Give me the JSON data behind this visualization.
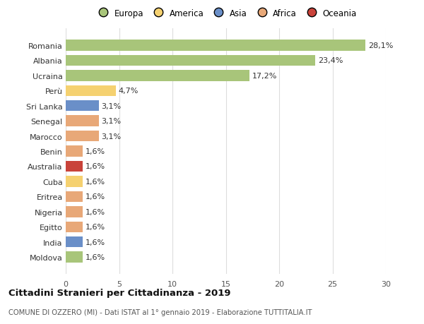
{
  "countries": [
    "Romania",
    "Albania",
    "Ucraina",
    "Perù",
    "Sri Lanka",
    "Senegal",
    "Marocco",
    "Benin",
    "Australia",
    "Cuba",
    "Eritrea",
    "Nigeria",
    "Egitto",
    "India",
    "Moldova"
  ],
  "values": [
    28.1,
    23.4,
    17.2,
    4.7,
    3.1,
    3.1,
    3.1,
    1.6,
    1.6,
    1.6,
    1.6,
    1.6,
    1.6,
    1.6,
    1.6
  ],
  "labels": [
    "28,1%",
    "23,4%",
    "17,2%",
    "4,7%",
    "3,1%",
    "3,1%",
    "3,1%",
    "1,6%",
    "1,6%",
    "1,6%",
    "1,6%",
    "1,6%",
    "1,6%",
    "1,6%",
    "1,6%"
  ],
  "colors": [
    "#a8c57a",
    "#a8c57a",
    "#a8c57a",
    "#f5d170",
    "#6a8fc8",
    "#e8a878",
    "#e8a878",
    "#e8a878",
    "#c9433a",
    "#f5d170",
    "#e8a878",
    "#e8a878",
    "#e8a878",
    "#6a8fc8",
    "#a8c57a"
  ],
  "legend_labels": [
    "Europa",
    "America",
    "Asia",
    "Africa",
    "Oceania"
  ],
  "legend_colors": [
    "#a8c57a",
    "#f5d170",
    "#6a8fc8",
    "#e8a878",
    "#c9433a"
  ],
  "title": "Cittadini Stranieri per Cittadinanza - 2019",
  "subtitle": "COMUNE DI OZZERO (MI) - Dati ISTAT al 1° gennaio 2019 - Elaborazione TUTTITALIA.IT",
  "xlim": [
    0,
    30
  ],
  "xticks": [
    0,
    5,
    10,
    15,
    20,
    25,
    30
  ],
  "background_color": "#ffffff",
  "grid_color": "#dddddd",
  "bar_height": 0.72,
  "label_fontsize": 8,
  "tick_fontsize": 8,
  "legend_fontsize": 8.5
}
